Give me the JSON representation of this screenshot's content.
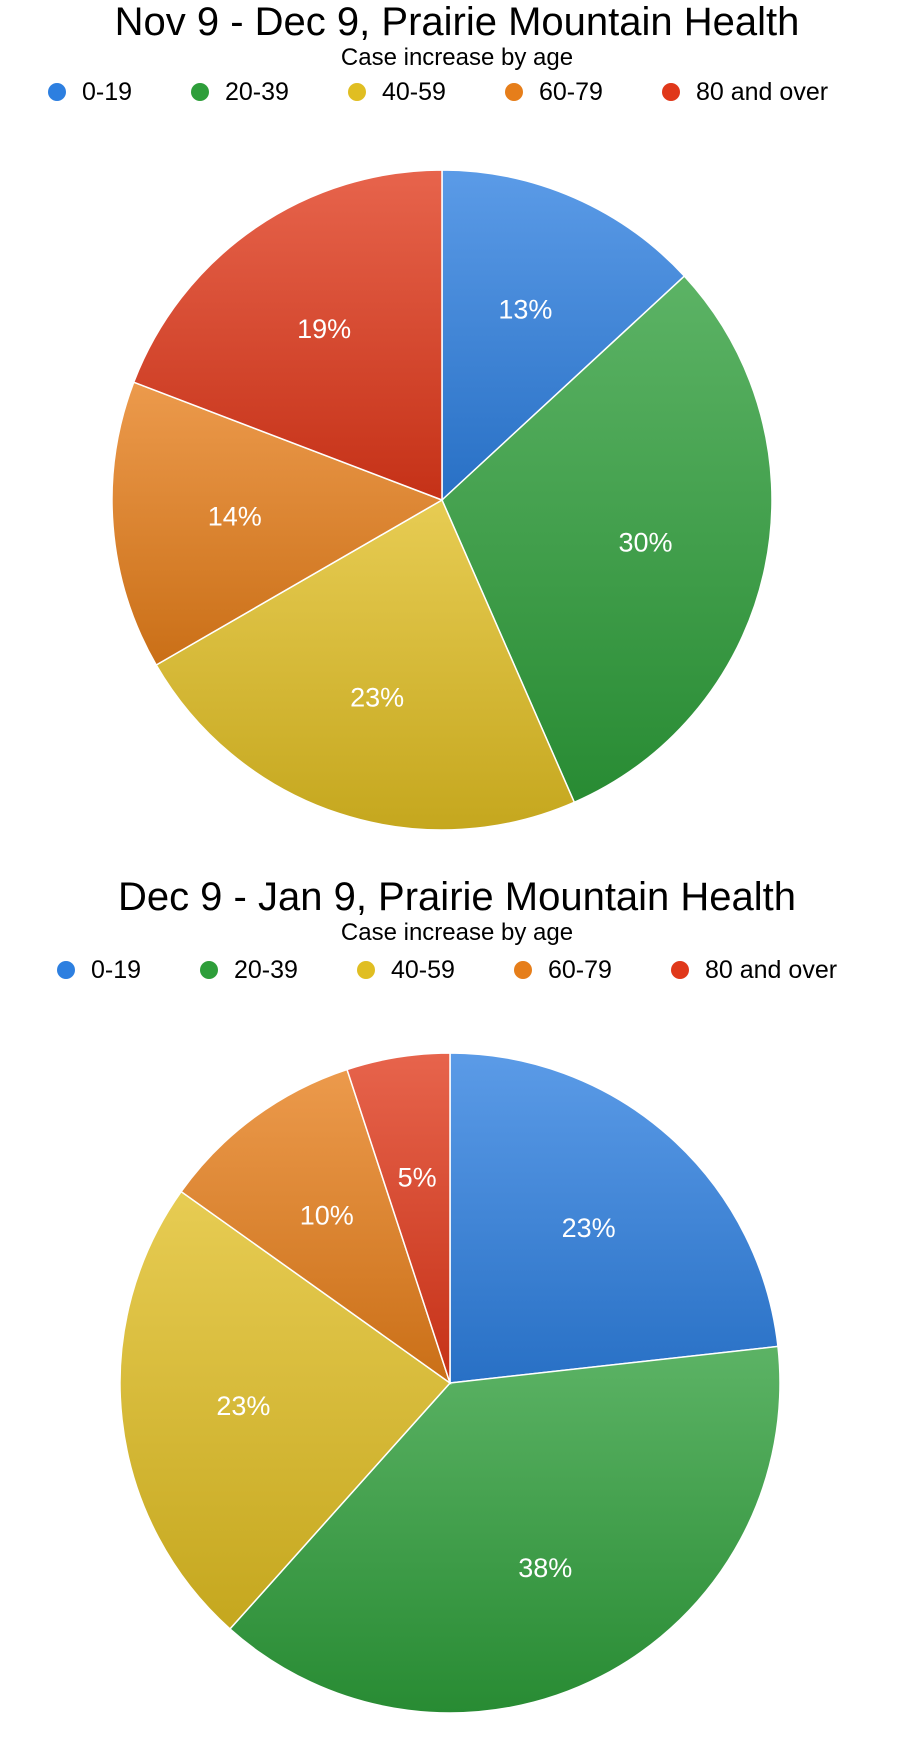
{
  "chart_data": [
    {
      "type": "pie",
      "title": "Nov 9 - Dec 9, Prairie Mountain Health",
      "subtitle": "Case increase by age",
      "legend_position": "top",
      "categories": [
        "0-19",
        "20-39",
        "40-59",
        "60-79",
        "80 and over"
      ],
      "values": [
        13,
        30,
        23,
        14,
        19
      ],
      "labels": [
        "13%",
        "30%",
        "23%",
        "14%",
        "19%"
      ],
      "colors": [
        "#2d7fe0",
        "#2e9e3a",
        "#e0be22",
        "#e67e1a",
        "#e0381a"
      ]
    },
    {
      "type": "pie",
      "title": "Dec 9 - Jan 9, Prairie Mountain Health",
      "subtitle": "Case increase by age",
      "legend_position": "top",
      "categories": [
        "0-19",
        "20-39",
        "40-59",
        "60-79",
        "80 and over"
      ],
      "values": [
        23,
        38,
        23,
        10,
        5
      ],
      "labels": [
        "23%",
        "38%",
        "23%",
        "10%",
        "5%"
      ],
      "colors": [
        "#2d7fe0",
        "#2e9e3a",
        "#e0be22",
        "#e67e1a",
        "#e0381a"
      ]
    }
  ]
}
